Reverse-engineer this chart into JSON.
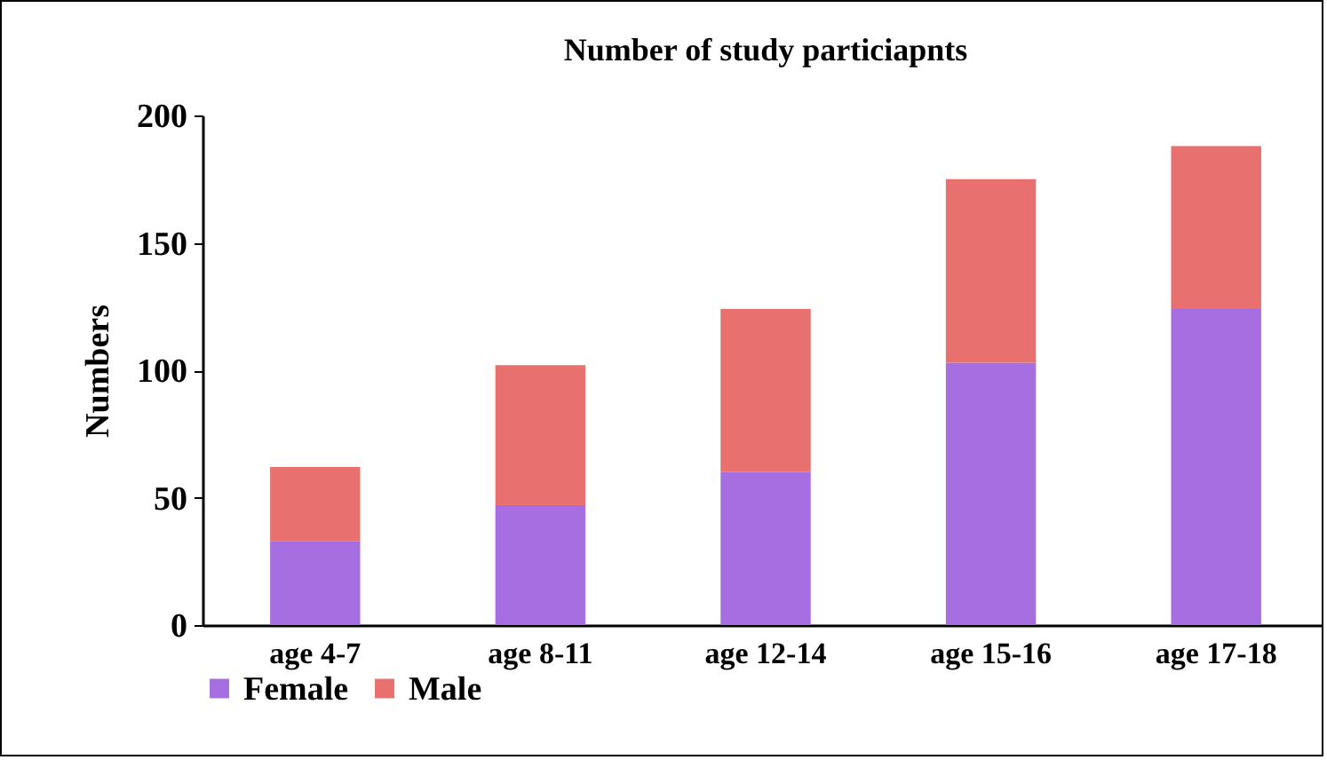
{
  "chart_data": {
    "type": "bar",
    "title": "Number of study particiapnts",
    "ylabel": "Numbers",
    "categories": [
      "age 4-7",
      "age 8-11",
      "age 12-14",
      "age 15-16",
      "age 17-18"
    ],
    "stacked": true,
    "ylim": [
      0,
      200
    ],
    "yticks": [
      0,
      50,
      100,
      150,
      200
    ],
    "grid": false,
    "legend": "bottom",
    "series": [
      {
        "name": "Female",
        "color": "#a66ee0",
        "values": [
          33,
          47,
          60,
          103,
          124
        ]
      },
      {
        "name": "Male",
        "color": "#e8706e",
        "values": [
          29,
          55,
          64,
          72,
          64
        ]
      }
    ]
  }
}
